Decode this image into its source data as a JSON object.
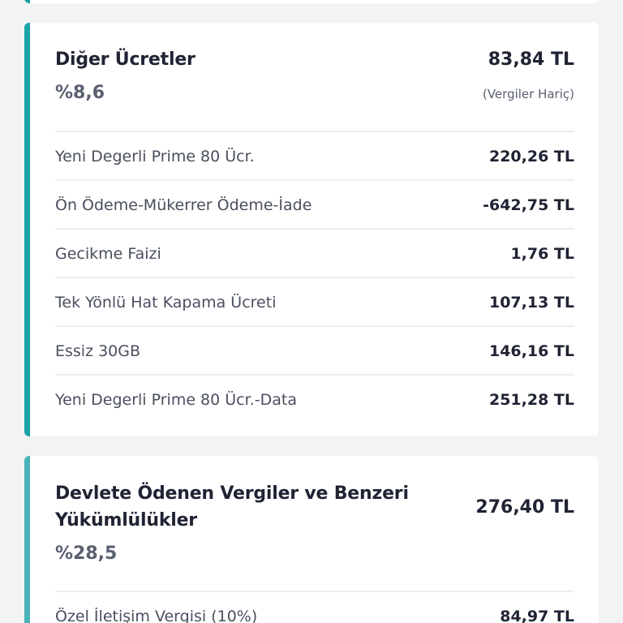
{
  "other_fees": {
    "title": "Diğer Ücretler",
    "percent": "%8,6",
    "amount": "83,84 TL",
    "note": "(Vergiler Hariç)",
    "items": [
      {
        "label": "Yeni Degerli Prime 80 Ücr.",
        "value": "220,26 TL"
      },
      {
        "label": "Ön Ödeme-Mükerrer Ödeme-İade",
        "value": "-642,75 TL"
      },
      {
        "label": "Gecikme Faizi",
        "value": "1,76 TL"
      },
      {
        "label": "Tek Yönlü Hat Kapama Ücreti",
        "value": "107,13 TL"
      },
      {
        "label": "Essiz 30GB",
        "value": "146,16 TL"
      },
      {
        "label": "Yeni Degerli Prime 80 Ücr.-Data",
        "value": "251,28 TL"
      }
    ]
  },
  "taxes": {
    "title_line1": "Devlete Ödenen Vergiler ve Benzeri",
    "title_line2": "Yükümlülükler",
    "percent": "%28,5",
    "amount": "276,40 TL",
    "items": [
      {
        "label": "Özel İletişim Vergisi (10%)",
        "value": "84,97 TL"
      }
    ]
  },
  "colors": {
    "accent": "#1aa3a8",
    "accent_tax": "#4bb4bb",
    "background": "#f2f3f5"
  }
}
